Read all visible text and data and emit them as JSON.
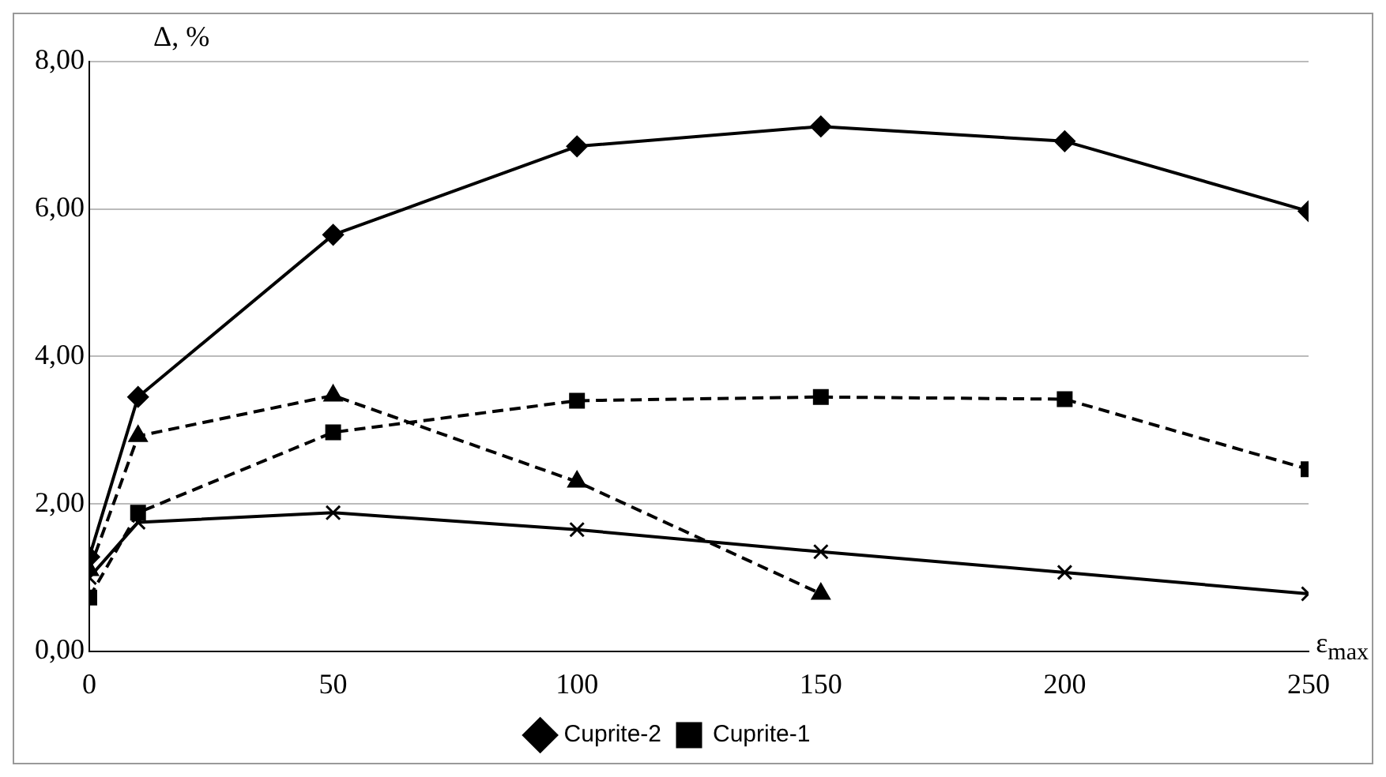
{
  "chart_data": {
    "type": "line",
    "xlabel": "ε$_{max}$",
    "ylabel": "Δ, %",
    "x": [
      0,
      10,
      50,
      100,
      150,
      200,
      250
    ],
    "xlim": [
      0,
      250
    ],
    "xticks": [
      0,
      50,
      100,
      150,
      200,
      250
    ],
    "ylim": [
      0,
      8
    ],
    "yticks": [
      {
        "value": 0,
        "label": "0,00"
      },
      {
        "value": 2,
        "label": "2,00"
      },
      {
        "value": 4,
        "label": "4,00"
      },
      {
        "value": 6,
        "label": "6,00"
      },
      {
        "value": 8,
        "label": "8,00"
      }
    ],
    "grid": "y",
    "legend": "bottom",
    "series": [
      {
        "name": "Cuprite-2",
        "color": "#000000",
        "marker": "diamond",
        "line_style": "solid",
        "values": [
          1.28,
          3.45,
          5.65,
          6.85,
          7.12,
          6.92,
          5.97
        ]
      },
      {
        "name": "Cuprite-1",
        "color": "#000000",
        "marker": "square",
        "line_style": "dashed",
        "values": [
          0.73,
          1.88,
          2.97,
          3.4,
          3.45,
          3.42,
          2.47
        ]
      },
      {
        "color": "#000000",
        "marker": "triangle",
        "line_style": "dashed",
        "values": [
          1.1,
          2.92,
          3.47,
          2.3,
          0.78,
          null,
          null
        ]
      },
      {
        "color": "#000000",
        "marker": "cross",
        "line_style": "solid",
        "values": [
          1.0,
          1.75,
          1.88,
          1.65,
          1.35,
          1.07,
          0.78
        ]
      }
    ]
  }
}
